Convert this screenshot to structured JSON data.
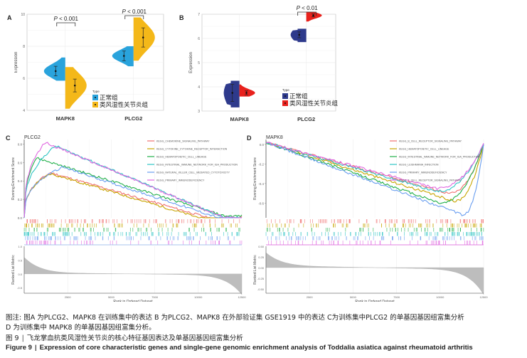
{
  "panels": {
    "A": {
      "letter": "A"
    },
    "B": {
      "letter": "B"
    },
    "C": {
      "letter": "C"
    },
    "D": {
      "letter": "D"
    }
  },
  "caption": {
    "note_line1": "图注: 图A 为PLCG2、MAPK8 在训练集中的表达 B 为PLCG2、MAPK8 在外部验证集 GSE1919 中的表达 C为训练集中PLCG2 的单基因基因组富集分析",
    "note_line2": "D 为训练集中 MAPK8 的单基因基因组富集分析。",
    "figure_label": "图 9",
    "title_cn": "飞龙掌血抗类风湿性关节炎的核心特征基因表达及单基因基因组富集分析",
    "figure_label_en": "Figure 9",
    "title_en": "Expression of core characteristic genes and single-gene genomic enrichment analysis of Toddalia asiatica against rheumatoid arthritis"
  },
  "chart_data": [
    {
      "id": "A",
      "type": "violin",
      "ylabel": "Expression",
      "ylim": [
        4,
        10
      ],
      "yticks": [
        4,
        6,
        8,
        10
      ],
      "categories": [
        "MAPK8",
        "PLCG2"
      ],
      "legend": {
        "title": "Type",
        "entries": [
          "正常组",
          "类风湿性关节炎组"
        ],
        "colors": [
          "#29a3dc",
          "#f4b819"
        ],
        "position": "bottom-right"
      },
      "series": [
        {
          "name": "正常组",
          "mean": [
            6.45,
            7.4
          ],
          "err": [
            0.3,
            0.3
          ],
          "range": [
            [
              5.85,
              7.3
            ],
            [
              6.75,
              8.0
            ]
          ]
        },
        {
          "name": "类风湿性关节炎组",
          "mean": [
            5.55,
            8.55
          ],
          "err": [
            0.4,
            0.6
          ],
          "range": [
            [
              4.1,
              6.7
            ],
            [
              7.1,
              9.8
            ]
          ]
        }
      ],
      "annotations": [
        {
          "between": "MAPK8",
          "text": "P < 0.001"
        },
        {
          "between": "PLCG2",
          "text": "P < 0.001"
        }
      ]
    },
    {
      "id": "B",
      "type": "violin",
      "ylabel": "Expression",
      "ylim": [
        3,
        7
      ],
      "yticks": [
        3,
        4,
        5,
        6,
        7
      ],
      "categories": [
        "MAPK8",
        "PLCG2"
      ],
      "legend": {
        "title": "Type",
        "entries": [
          "正常组",
          "类风湿性关节炎组"
        ],
        "colors": [
          "#2e3a8c",
          "#e8211c"
        ],
        "position": "bottom-right"
      },
      "series": [
        {
          "name": "正常组",
          "mean": [
            3.75,
            6.15
          ],
          "err": [
            0.35,
            0.12
          ],
          "range": [
            [
              3.15,
              4.25
            ],
            [
              5.85,
              6.4
            ]
          ]
        },
        {
          "name": "类风湿性关节炎组",
          "mean": [
            3.75,
            6.95
          ],
          "err": [
            0.08,
            0.06
          ],
          "range": [
            [
              3.6,
              4.1
            ],
            [
              6.7,
              7.1
            ]
          ]
        }
      ],
      "annotations": [
        {
          "between": "PLCG2",
          "text": "P < 0.01"
        }
      ]
    },
    {
      "id": "C",
      "type": "line",
      "title": "PLCG2",
      "ylabel": "Running Enrichment Score",
      "ylim": [
        0,
        0.85
      ],
      "yticks": [
        0.0,
        0.2,
        0.4,
        0.6,
        0.8
      ],
      "ranked_ylabel": "Ranked List Metric",
      "ranked_ylim": [
        -0.7,
        1.0
      ],
      "ranked_yticks": [
        -0.5,
        0.0,
        0.5,
        1.0
      ],
      "xlabel": "Rank in Ordered Dataset",
      "xlim": [
        0,
        12500
      ],
      "xticks": [
        2500,
        5000,
        7500,
        10000,
        12500
      ],
      "legend_position": "top-right",
      "series": [
        {
          "name": "KEGG_CHEMOKINE_SIGNALING_PATHWAY",
          "color": "#f07070",
          "peak": 0.49,
          "peak_at": 1500,
          "end": 0.0,
          "dip": -0.05
        },
        {
          "name": "KEGG_CYTOKINE_CYTOKINE_RECEPTOR_INTERACTION",
          "color": "#c7a500",
          "peak": 0.48,
          "peak_at": 1500,
          "end": -0.02,
          "dip": -0.08
        },
        {
          "name": "KEGG_HEMATOPOIETIC_CELL_LINEAGE",
          "color": "#22b04a",
          "peak": 0.65,
          "peak_at": 700,
          "end": 0.02,
          "dip": 0.02
        },
        {
          "name": "KEGG_INTESTINAL_IMMUNE_NETWORK_FOR_IGA_PRODUCTION",
          "color": "#2ec4c4",
          "peak": 0.78,
          "peak_at": 1800,
          "end": 0.0,
          "dip": 0.0
        },
        {
          "name": "KEGG_NATURAL_KILLER_CELL_MEDIATED_CYTOTOXICITY",
          "color": "#6a9ef0",
          "peak": 0.55,
          "peak_at": 2200,
          "end": -0.02,
          "dip": -0.02
        },
        {
          "name": "KEGG_PRIMARY_IMMUNODEFICIENCY",
          "color": "#e066e0",
          "peak": 0.82,
          "peak_at": 1200,
          "end": 0.0,
          "dip": 0.0
        }
      ]
    },
    {
      "id": "D",
      "type": "line",
      "title": "MAPK8",
      "ylabel": "Running Enrichment Score",
      "ylim": [
        -0.75,
        0.05
      ],
      "yticks": [
        -0.6,
        -0.4,
        -0.2,
        0.0
      ],
      "ranked_ylabel": "Ranked List Metric",
      "ranked_ylim": [
        -0.6,
        0.5
      ],
      "ranked_yticks": [
        -0.5,
        -0.25,
        0.0,
        0.25,
        0.5
      ],
      "xlabel": "Rank in Ordered Dataset",
      "xlim": [
        0,
        12500
      ],
      "xticks": [
        2500,
        5000,
        7500,
        10000,
        12500
      ],
      "legend_position": "top-right",
      "series": [
        {
          "name": "KEGG_B_CELL_RECEPTOR_SIGNALING_PATHWAY",
          "color": "#f07070",
          "trough": -0.5,
          "trough_at": 10500
        },
        {
          "name": "KEGG_HEMATOPOIETIC_CELL_LINEAGE",
          "color": "#c7a500",
          "trough": -0.58,
          "trough_at": 10800
        },
        {
          "name": "KEGG_INTESTINAL_IMMUNE_NETWORK_FOR_IGA_PRODUCTION",
          "color": "#22b04a",
          "trough": -0.6,
          "trough_at": 10000
        },
        {
          "name": "KEGG_LEISHMANIA_INFECTION",
          "color": "#2ec4c4",
          "trough": -0.48,
          "trough_at": 9800
        },
        {
          "name": "KEGG_PRIMARY_IMMUNODEFICIENCY",
          "color": "#6a9ef0",
          "trough": -0.72,
          "trough_at": 11300
        },
        {
          "name": "KEGG_T_CELL_RECEPTOR_SIGNALING_PATHWAY",
          "color": "#e066e0",
          "trough": -0.45,
          "trough_at": 9800
        }
      ]
    }
  ]
}
